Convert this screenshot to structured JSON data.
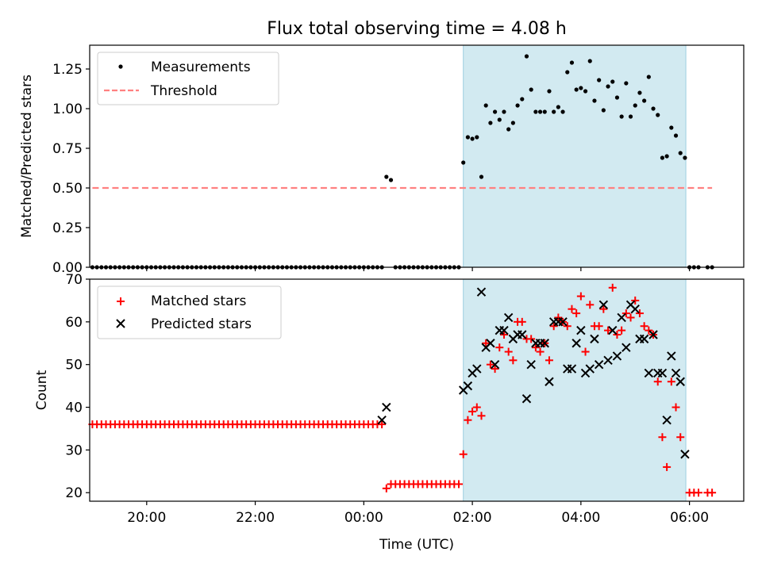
{
  "figure": {
    "title": "Flux total observing time = 4.08 h",
    "xlabel": "Time (UTC)"
  },
  "chart_data": [
    {
      "type": "scatter",
      "panel": "top",
      "ylabel": "Matched/Predicted stars",
      "xlim": [
        "18:57",
        "07:00"
      ],
      "ylim": [
        0,
        1.4
      ],
      "yticks": [
        "0.00",
        "0.25",
        "0.50",
        "0.75",
        "1.00",
        "1.25"
      ],
      "ytick_values": [
        0,
        0.25,
        0.5,
        0.75,
        1.0,
        1.25
      ],
      "grid": false,
      "legend": "top-left",
      "shaded_interval": [
        "01:50",
        "05:56"
      ],
      "shaded_color": "#add8e6",
      "series": [
        {
          "name": "Measurements",
          "marker": "dot",
          "color": "#000000",
          "points": [
            [
              "00:25",
              0.57
            ],
            [
              "00:30",
              0.55
            ],
            [
              "01:50",
              0.66
            ],
            [
              "01:55",
              0.82
            ],
            [
              "02:00",
              0.81
            ],
            [
              "02:05",
              0.82
            ],
            [
              "02:10",
              0.57
            ],
            [
              "02:15",
              1.02
            ],
            [
              "02:20",
              0.91
            ],
            [
              "02:25",
              0.98
            ],
            [
              "02:30",
              0.93
            ],
            [
              "02:35",
              0.98
            ],
            [
              "02:40",
              0.87
            ],
            [
              "02:45",
              0.91
            ],
            [
              "02:50",
              1.02
            ],
            [
              "02:55",
              1.06
            ],
            [
              "03:00",
              1.33
            ],
            [
              "03:05",
              1.12
            ],
            [
              "03:10",
              0.98
            ],
            [
              "03:15",
              0.98
            ],
            [
              "03:20",
              0.98
            ],
            [
              "03:25",
              1.11
            ],
            [
              "03:30",
              0.98
            ],
            [
              "03:35",
              1.01
            ],
            [
              "03:40",
              0.98
            ],
            [
              "03:45",
              1.23
            ],
            [
              "03:50",
              1.29
            ],
            [
              "03:55",
              1.12
            ],
            [
              "04:00",
              1.13
            ],
            [
              "04:05",
              1.11
            ],
            [
              "04:10",
              1.3
            ],
            [
              "04:15",
              1.05
            ],
            [
              "04:20",
              1.18
            ],
            [
              "04:25",
              0.99
            ],
            [
              "04:30",
              1.14
            ],
            [
              "04:35",
              1.17
            ],
            [
              "04:40",
              1.07
            ],
            [
              "04:45",
              0.95
            ],
            [
              "04:50",
              1.16
            ],
            [
              "04:55",
              0.95
            ],
            [
              "05:00",
              1.02
            ],
            [
              "05:05",
              1.1
            ],
            [
              "05:10",
              1.05
            ],
            [
              "05:15",
              1.2
            ],
            [
              "05:20",
              1.0
            ],
            [
              "05:25",
              0.96
            ],
            [
              "05:30",
              0.69
            ],
            [
              "05:35",
              0.7
            ],
            [
              "05:40",
              0.88
            ],
            [
              "05:45",
              0.83
            ],
            [
              "05:50",
              0.72
            ],
            [
              "05:55",
              0.69
            ]
          ],
          "zero_runs": [
            {
              "from": "19:00",
              "to": "00:20",
              "step_min": 5,
              "y": 0
            },
            {
              "from": "00:35",
              "to": "01:45",
              "step_min": 5,
              "y": 0
            },
            {
              "from": "06:00",
              "to": "06:10",
              "step_min": 5,
              "y": 0
            },
            {
              "from": "06:20",
              "to": "06:25",
              "step_min": 5,
              "y": 0
            }
          ]
        },
        {
          "name": "Threshold",
          "type": "line",
          "style": "dashed",
          "color": "#ff8080",
          "x": [
            "19:00",
            "06:25"
          ],
          "y": [
            0.5,
            0.5
          ]
        }
      ]
    },
    {
      "type": "scatter",
      "panel": "bottom",
      "ylabel": "Count",
      "xlim": [
        "18:57",
        "07:00"
      ],
      "ylim": [
        18,
        70
      ],
      "yticks": [
        "20",
        "30",
        "40",
        "50",
        "60",
        "70"
      ],
      "ytick_values": [
        20,
        30,
        40,
        50,
        60,
        70
      ],
      "xticks": [
        "20:00",
        "22:00",
        "00:00",
        "02:00",
        "04:00",
        "06:00"
      ],
      "grid": false,
      "legend": "top-left",
      "shaded_interval": [
        "01:50",
        "05:56"
      ],
      "shaded_color": "#add8e6",
      "series": [
        {
          "name": "Matched stars",
          "marker": "plus",
          "color": "#ff0000",
          "runs": [
            {
              "from": "19:00",
              "to": "00:20",
              "step_min": 5,
              "y": 36
            },
            {
              "from": "00:25",
              "to": "00:25",
              "step_min": 5,
              "y": 21
            },
            {
              "from": "00:30",
              "to": "01:45",
              "step_min": 5,
              "y": 22
            },
            {
              "from": "06:00",
              "to": "06:10",
              "step_min": 5,
              "y": 20
            },
            {
              "from": "06:20",
              "to": "06:25",
              "step_min": 5,
              "y": 20
            }
          ],
          "points": [
            [
              "01:50",
              29
            ],
            [
              "01:55",
              37
            ],
            [
              "02:00",
              39
            ],
            [
              "02:05",
              40
            ],
            [
              "02:10",
              38
            ],
            [
              "02:15",
              55
            ],
            [
              "02:20",
              50
            ],
            [
              "02:25",
              49
            ],
            [
              "02:30",
              54
            ],
            [
              "02:35",
              57
            ],
            [
              "02:40",
              53
            ],
            [
              "02:45",
              51
            ],
            [
              "02:50",
              60
            ],
            [
              "02:55",
              60
            ],
            [
              "03:00",
              56
            ],
            [
              "03:05",
              56
            ],
            [
              "03:10",
              54
            ],
            [
              "03:15",
              53
            ],
            [
              "03:20",
              55
            ],
            [
              "03:25",
              51
            ],
            [
              "03:30",
              59
            ],
            [
              "03:35",
              61
            ],
            [
              "03:40",
              60
            ],
            [
              "03:45",
              59
            ],
            [
              "03:50",
              63
            ],
            [
              "03:55",
              62
            ],
            [
              "04:00",
              66
            ],
            [
              "04:05",
              53
            ],
            [
              "04:10",
              64
            ],
            [
              "04:15",
              59
            ],
            [
              "04:20",
              59
            ],
            [
              "04:25",
              63
            ],
            [
              "04:30",
              58
            ],
            [
              "04:35",
              68
            ],
            [
              "04:40",
              57
            ],
            [
              "04:45",
              58
            ],
            [
              "04:50",
              62
            ],
            [
              "04:55",
              61
            ],
            [
              "05:00",
              65
            ],
            [
              "05:05",
              62
            ],
            [
              "05:10",
              59
            ],
            [
              "05:15",
              58
            ],
            [
              "05:20",
              57
            ],
            [
              "05:25",
              46
            ],
            [
              "05:30",
              33
            ],
            [
              "05:35",
              26
            ],
            [
              "05:40",
              46
            ],
            [
              "05:45",
              40
            ],
            [
              "05:50",
              33
            ]
          ]
        },
        {
          "name": "Predicted stars",
          "marker": "x",
          "color": "#000000",
          "points": [
            [
              "00:20",
              37
            ],
            [
              "00:25",
              40
            ],
            [
              "01:50",
              44
            ],
            [
              "01:55",
              45
            ],
            [
              "02:00",
              48
            ],
            [
              "02:05",
              49
            ],
            [
              "02:10",
              67
            ],
            [
              "02:15",
              54
            ],
            [
              "02:20",
              55
            ],
            [
              "02:25",
              50
            ],
            [
              "02:30",
              58
            ],
            [
              "02:35",
              58
            ],
            [
              "02:40",
              61
            ],
            [
              "02:45",
              56
            ],
            [
              "02:50",
              57
            ],
            [
              "02:55",
              57
            ],
            [
              "03:00",
              42
            ],
            [
              "03:05",
              50
            ],
            [
              "03:10",
              55
            ],
            [
              "03:15",
              55
            ],
            [
              "03:20",
              55
            ],
            [
              "03:25",
              46
            ],
            [
              "03:30",
              60
            ],
            [
              "03:35",
              60
            ],
            [
              "03:40",
              60
            ],
            [
              "03:45",
              49
            ],
            [
              "03:50",
              49
            ],
            [
              "03:55",
              55
            ],
            [
              "04:00",
              58
            ],
            [
              "04:05",
              48
            ],
            [
              "04:10",
              49
            ],
            [
              "04:15",
              56
            ],
            [
              "04:20",
              50
            ],
            [
              "04:25",
              64
            ],
            [
              "04:30",
              51
            ],
            [
              "04:35",
              58
            ],
            [
              "04:40",
              52
            ],
            [
              "04:45",
              61
            ],
            [
              "04:50",
              54
            ],
            [
              "04:55",
              64
            ],
            [
              "05:00",
              63
            ],
            [
              "05:05",
              56
            ],
            [
              "05:10",
              56
            ],
            [
              "05:15",
              48
            ],
            [
              "05:20",
              57
            ],
            [
              "05:25",
              48
            ],
            [
              "05:30",
              48
            ],
            [
              "05:35",
              37
            ],
            [
              "05:40",
              52
            ],
            [
              "05:45",
              48
            ],
            [
              "05:50",
              46
            ],
            [
              "05:55",
              29
            ]
          ]
        }
      ]
    }
  ]
}
